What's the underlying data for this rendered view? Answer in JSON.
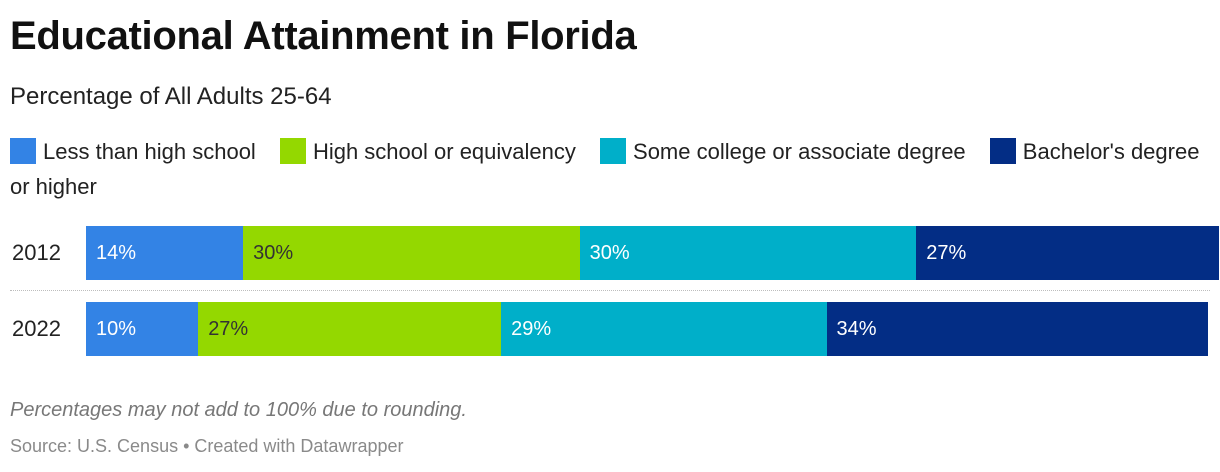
{
  "chart_data": {
    "type": "bar",
    "orientation": "horizontal",
    "stacked": true,
    "title": "Educational Attainment in Florida",
    "subtitle": "Percentage of All Adults 25-64",
    "categories": [
      "2012",
      "2022"
    ],
    "series": [
      {
        "name": "Less than high school",
        "color": "#3383e5",
        "label_color": "#ffffff",
        "values": [
          14,
          10
        ],
        "labels": [
          "14%",
          "10%"
        ]
      },
      {
        "name": "High school or equivalency",
        "color": "#94d800",
        "label_color": "#333333",
        "values": [
          30,
          27
        ],
        "labels": [
          "30%",
          "27%"
        ]
      },
      {
        "name": "Some college or associate degree",
        "color": "#00afc9",
        "label_color": "#ffffff",
        "values": [
          30,
          29
        ],
        "labels": [
          "30%",
          "29%"
        ]
      },
      {
        "name": "Bachelor's degree or higher",
        "color": "#032d85",
        "label_color": "#ffffff",
        "values": [
          27,
          34
        ],
        "labels": [
          "27%",
          "34%"
        ]
      }
    ],
    "legend_position": "top",
    "grid": false,
    "note": "Percentages may not add to 100% due to rounding.",
    "source": "Source: U.S. Census • Created with Datawrapper"
  }
}
